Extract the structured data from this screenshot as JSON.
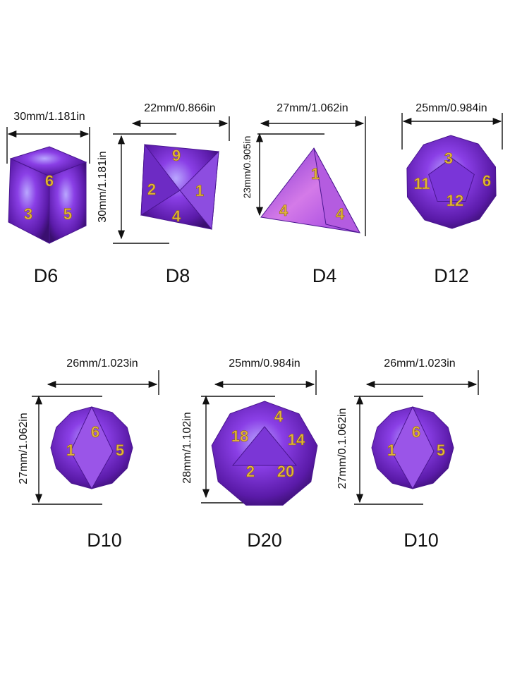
{
  "dice": [
    {
      "label": "D6",
      "width": "30mm/1.181in",
      "numerals": [
        "6",
        "3",
        "5"
      ]
    },
    {
      "label": "D8",
      "width": "22mm/0.866in",
      "height": "30mm/1.181in",
      "numerals": [
        "9",
        "2",
        "1",
        "4"
      ]
    },
    {
      "label": "D4",
      "width": "27mm/1.062in",
      "height": "23mm/0.905in",
      "numerals": [
        "1",
        "4",
        "4"
      ]
    },
    {
      "label": "D12",
      "width": "25mm/0.984in",
      "numerals": [
        "3",
        "11",
        "12",
        "6"
      ]
    },
    {
      "label": "D10",
      "width": "26mm/1.023in",
      "height": "27mm/1.062in",
      "numerals": [
        "6",
        "1",
        "5"
      ]
    },
    {
      "label": "D20",
      "width": "25mm/0.984in",
      "height": "28mm/1.102in",
      "numerals": [
        "18",
        "4",
        "2",
        "20",
        "14"
      ]
    },
    {
      "label": "D10",
      "width": "26mm/1.023in",
      "height": "27mm/0.1.062in",
      "numerals": [
        "6",
        "1",
        "5"
      ]
    }
  ]
}
